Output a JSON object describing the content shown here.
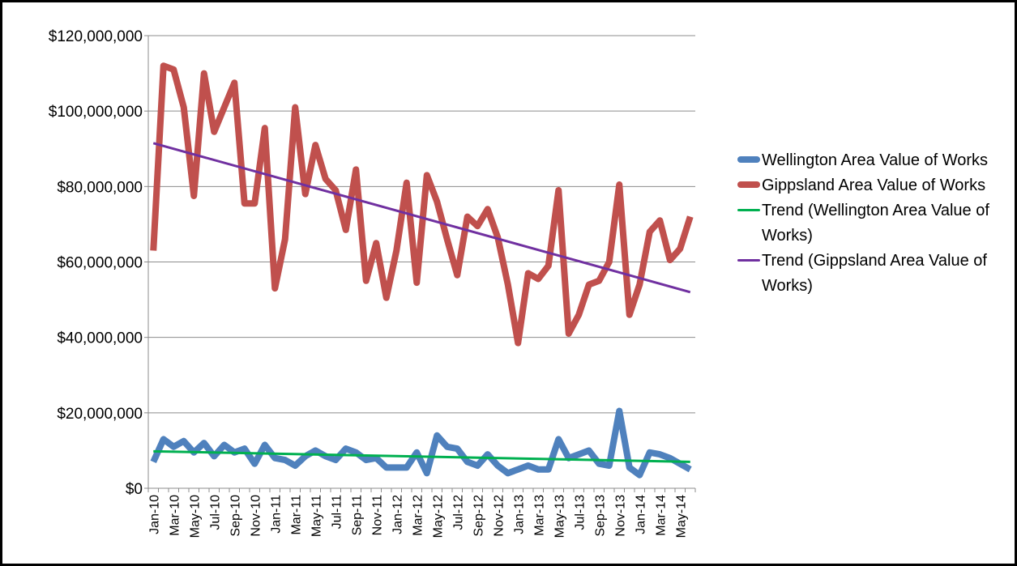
{
  "chart_data": {
    "type": "line",
    "categories": [
      "Jan-10",
      null,
      "Mar-10",
      null,
      "May-10",
      null,
      "Jul-10",
      null,
      "Sep-10",
      null,
      "Nov-10",
      null,
      "Jan-11",
      null,
      "Mar-11",
      null,
      "May-11",
      null,
      "Jul-11",
      null,
      "Sep-11",
      null,
      "Nov-11",
      null,
      "Jan-12",
      null,
      "Mar-12",
      null,
      "May-12",
      null,
      "Jul-12",
      null,
      "Sep-12",
      null,
      "Nov-12",
      null,
      "Jan-13",
      null,
      "Mar-13",
      null,
      "May-13",
      null,
      "Jul-13",
      null,
      "Sep-13",
      null,
      "Nov-13",
      null,
      "Jan-14",
      null,
      "Mar-14",
      null,
      "May-14",
      null
    ],
    "series": [
      {
        "name": "Wellington Area Value of Works",
        "color": "#4f81bd",
        "values": [
          7000000,
          13000000,
          11000000,
          12500000,
          9500000,
          12000000,
          8500000,
          11500000,
          9500000,
          10500000,
          6500000,
          11500000,
          8000000,
          7500000,
          6000000,
          8500000,
          10000000,
          8500000,
          7500000,
          10500000,
          9500000,
          7500000,
          8000000,
          5500000,
          5500000,
          5500000,
          9500000,
          4000000,
          14000000,
          11000000,
          10500000,
          7000000,
          6000000,
          9000000,
          6000000,
          4000000,
          5000000,
          6000000,
          5000000,
          5000000,
          13000000,
          8000000,
          9000000,
          10000000,
          6500000,
          6000000,
          20500000,
          5500000,
          3500000,
          9500000,
          9000000,
          8000000,
          6500000,
          5000000
        ]
      },
      {
        "name": "Gippsland Area Value of Works",
        "color": "#c0504d",
        "values": [
          63000000,
          112000000,
          111000000,
          101000000,
          77500000,
          110000000,
          94500000,
          101000000,
          107500000,
          75500000,
          75500000,
          95500000,
          53000000,
          66000000,
          101000000,
          78000000,
          91000000,
          82000000,
          79000000,
          68500000,
          84500000,
          55000000,
          65000000,
          50500000,
          63000000,
          81000000,
          54500000,
          83000000,
          76000000,
          66000000,
          56500000,
          72000000,
          69500000,
          74000000,
          66500000,
          54000000,
          38500000,
          57000000,
          55500000,
          59000000,
          79000000,
          41000000,
          46000000,
          54000000,
          55000000,
          60000000,
          80500000,
          46000000,
          54000000,
          68000000,
          71000000,
          60500000,
          63500000,
          72000000
        ]
      }
    ],
    "trends": [
      {
        "name": "Trend (Wellington Area Value of Works)",
        "color": "#00b050",
        "start": 9800000,
        "end": 7000000
      },
      {
        "name": "Trend (Gippsland Area Value of Works)",
        "color": "#7030a0",
        "start": 91500000,
        "end": 52000000
      }
    ],
    "ylim": [
      0,
      120000000
    ],
    "yticks": [
      {
        "value": 0,
        "label": "$0"
      },
      {
        "value": 20000000,
        "label": "$20,000,000"
      },
      {
        "value": 40000000,
        "label": "$40,000,000"
      },
      {
        "value": 60000000,
        "label": "$60,000,000"
      },
      {
        "value": 80000000,
        "label": "$80,000,000"
      },
      {
        "value": 100000000,
        "label": "$100,000,000"
      },
      {
        "value": 120000000,
        "label": "$120,000,000"
      }
    ],
    "grid": true
  }
}
